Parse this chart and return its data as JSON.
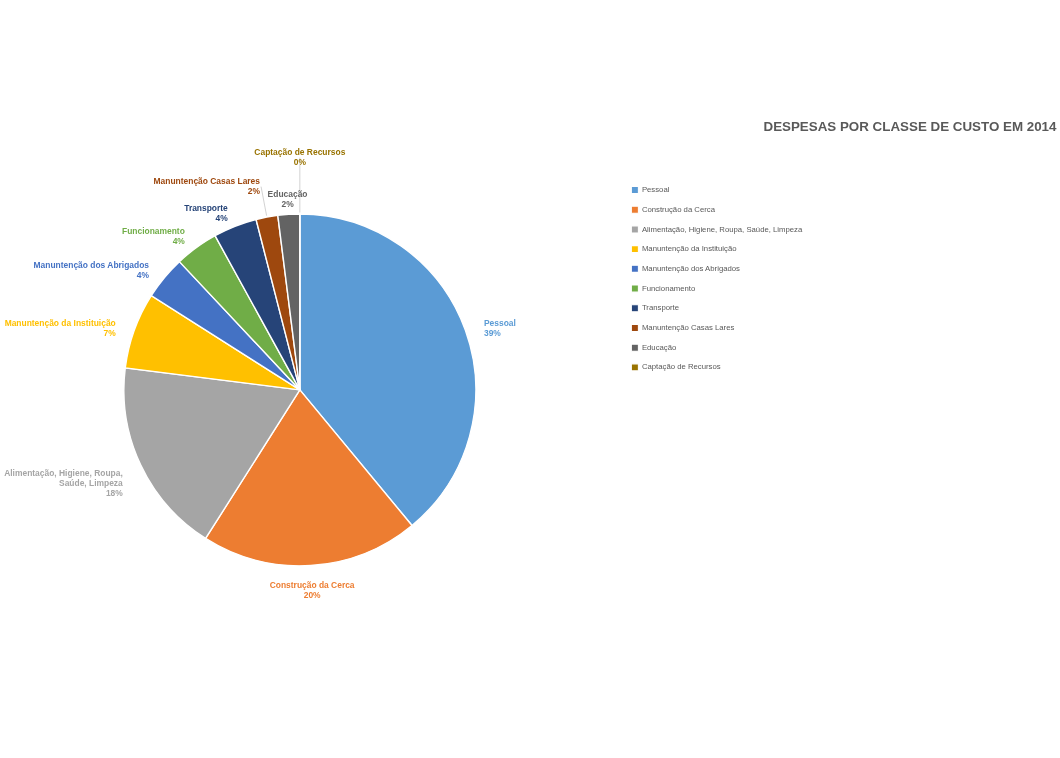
{
  "chart_data": {
    "type": "pie",
    "title": "DESPESAS POR CLASSE DE CUSTO EM 2014",
    "categories": [
      "Pessoal",
      "Construção da Cerca",
      "Alimentação, Higiene, Roupa, Saúde, Limpeza",
      "Manuntenção da Instituição",
      "Manuntenção dos Abrigados",
      "Funcionamento",
      "Transporte",
      "Manuntenção Casas Lares",
      "Educação",
      "Captação de Recursos"
    ],
    "values": [
      39,
      20,
      18,
      7,
      4,
      4,
      4,
      2,
      2,
      0
    ],
    "value_labels": [
      "39%",
      "20%",
      "18%",
      "7%",
      "4%",
      "4%",
      "4%",
      "2%",
      "2%",
      "0%"
    ],
    "colors": [
      "#5b9bd5",
      "#ed7d31",
      "#a5a5a5",
      "#ffc000",
      "#4472c4",
      "#70ad47",
      "#264478",
      "#9e480e",
      "#636363",
      "#997300"
    ],
    "legend": "right"
  }
}
